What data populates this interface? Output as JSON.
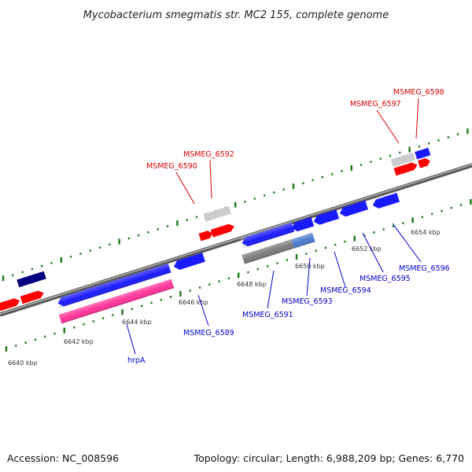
{
  "title": "Mycobacterium smegmatis str. MC2 155, complete genome",
  "footer": {
    "accession": "Accession: NC_008596",
    "summary": "Topology: circular; Length: 6,988,209 bp; Genes: 6,770"
  },
  "scale_labels": [
    "6640 kbp",
    "6642 kbp",
    "6644 kbp",
    "6646 kbp",
    "6648 kbp",
    "6650 kbp",
    "6652 kbp",
    "6654 kbp"
  ],
  "genes": {
    "forward": [
      "MSMEG_6590",
      "MSMEG_6592",
      "MSMEG_6597",
      "MSMEG_6598"
    ],
    "reverse": [
      "hrpA",
      "MSMEG_6589",
      "MSMEG_6591",
      "MSMEG_6593",
      "MSMEG_6594",
      "MSMEG_6595",
      "MSMEG_6596"
    ]
  },
  "colors": {
    "forward_label": "#e00000",
    "reverse_label": "#0000cc",
    "forward_cds": "#ff0000",
    "reverse_cds": "#1a1aff",
    "rna": "#ff3399",
    "pseudo": "#cccccc",
    "dark_cds": "#000080",
    "backbone": "#8a8a8a",
    "tick": "#1a7a1a"
  }
}
